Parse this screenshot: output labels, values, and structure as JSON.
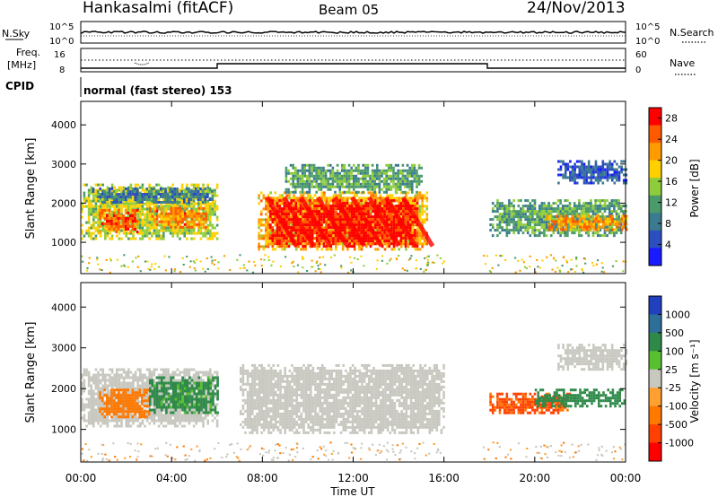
{
  "header": {
    "title": "Hankasalmi (fitACF)",
    "beam": "Beam 05",
    "date": "24/Nov/2013"
  },
  "strips": {
    "nsky_label": "N.Sky",
    "nsearch_label": "N.Search",
    "nsky_ticks": [
      "10^5",
      "10^0"
    ],
    "nsearch_ticks": [
      "10^5",
      "10^0"
    ],
    "freq_label_1": "Freq.",
    "freq_label_2": "[MHz]",
    "freq_ticks": [
      "16",
      "8"
    ],
    "nave_label": "Nave",
    "nave_ticks": [
      "60",
      "0"
    ],
    "cpid_label": "CPID",
    "cpid_value": "normal (fast stereo) 153"
  },
  "colors": {
    "power_scale": [
      "#1a1aff",
      "#2b4fbf",
      "#3b7a8f",
      "#4a9a6a",
      "#8fcc3a",
      "#ffd000",
      "#ff9a00",
      "#ff5a00",
      "#ff0000"
    ],
    "velocity_scale": [
      "#2040c0",
      "#2e6f9a",
      "#2f8a4a",
      "#58c030",
      "#c8c8c0",
      "#ffa030",
      "#ff7800",
      "#ff4000",
      "#ff0000"
    ],
    "ground_scatter": "#c8c8c0"
  },
  "chart_data": [
    {
      "type": "heatmap",
      "title": "",
      "xlabel": "",
      "ylabel": "Slant Range [km]",
      "x_ticks": [
        "00:00",
        "04:00",
        "08:00",
        "12:00",
        "16:00",
        "20:00",
        "00:00"
      ],
      "xlim_hours": [
        0,
        24
      ],
      "ylim": [
        200,
        4600
      ],
      "y_ticks": [
        1000,
        2000,
        3000,
        4000
      ],
      "colorbar_label": "Power [dB]",
      "colorbar_ticks": [
        4,
        8,
        12,
        16,
        20,
        24,
        28
      ],
      "colorbar_range": [
        0,
        30
      ],
      "regions": [
        {
          "t0": 0.0,
          "t1": 6.0,
          "r0": 1100,
          "r1": 2500,
          "value": 16
        },
        {
          "t0": 0.5,
          "t1": 5.8,
          "r0": 2000,
          "r1": 2400,
          "value": 8
        },
        {
          "t0": 0.8,
          "t1": 2.5,
          "r0": 1250,
          "r1": 1850,
          "value": 25
        },
        {
          "t0": 3.0,
          "t1": 5.5,
          "r0": 1400,
          "r1": 1900,
          "value": 23
        },
        {
          "t0": 7.8,
          "t1": 15.3,
          "r0": 800,
          "r1": 2300,
          "value": 20
        },
        {
          "t0": 8.3,
          "t1": 14.8,
          "r0": 900,
          "r1": 2100,
          "value": 28
        },
        {
          "t0": 9.0,
          "t1": 15.0,
          "r0": 2300,
          "r1": 3000,
          "value": 12
        },
        {
          "t0": 18.0,
          "t1": 24.0,
          "r0": 1200,
          "r1": 2100,
          "value": 12
        },
        {
          "t0": 20.5,
          "t1": 24.0,
          "r0": 1300,
          "r1": 1700,
          "value": 22
        },
        {
          "t0": 21.0,
          "t1": 24.0,
          "r0": 2500,
          "r1": 3100,
          "value": 6
        }
      ]
    },
    {
      "type": "heatmap",
      "title": "",
      "xlabel": "Time UT",
      "ylabel": "Slant Range [km]",
      "x_ticks": [
        "00:00",
        "04:00",
        "08:00",
        "12:00",
        "16:00",
        "20:00",
        "00:00"
      ],
      "xlim_hours": [
        0,
        24
      ],
      "ylim": [
        200,
        4600
      ],
      "y_ticks": [
        1000,
        2000,
        3000,
        4000
      ],
      "colorbar_label": "Velocity [m s⁻¹]",
      "colorbar_ticks": [
        1000,
        500,
        100,
        25,
        -25,
        -100,
        -500,
        -1000
      ],
      "regions": [
        {
          "t0": 0.0,
          "t1": 6.0,
          "r0": 1100,
          "r1": 2500,
          "value": 0
        },
        {
          "t0": 0.8,
          "t1": 3.0,
          "r0": 1300,
          "r1": 2000,
          "value": -300
        },
        {
          "t0": 3.0,
          "t1": 6.0,
          "r0": 1400,
          "r1": 2300,
          "value": 150
        },
        {
          "t0": 7.0,
          "t1": 16.0,
          "r0": 900,
          "r1": 2600,
          "value": 0
        },
        {
          "t0": 18.0,
          "t1": 21.5,
          "r0": 1400,
          "r1": 1900,
          "value": -600
        },
        {
          "t0": 20.0,
          "t1": 24.0,
          "r0": 1600,
          "r1": 2000,
          "value": 300
        },
        {
          "t0": 21.0,
          "t1": 24.0,
          "r0": 2500,
          "r1": 3100,
          "value": 0
        }
      ]
    }
  ]
}
